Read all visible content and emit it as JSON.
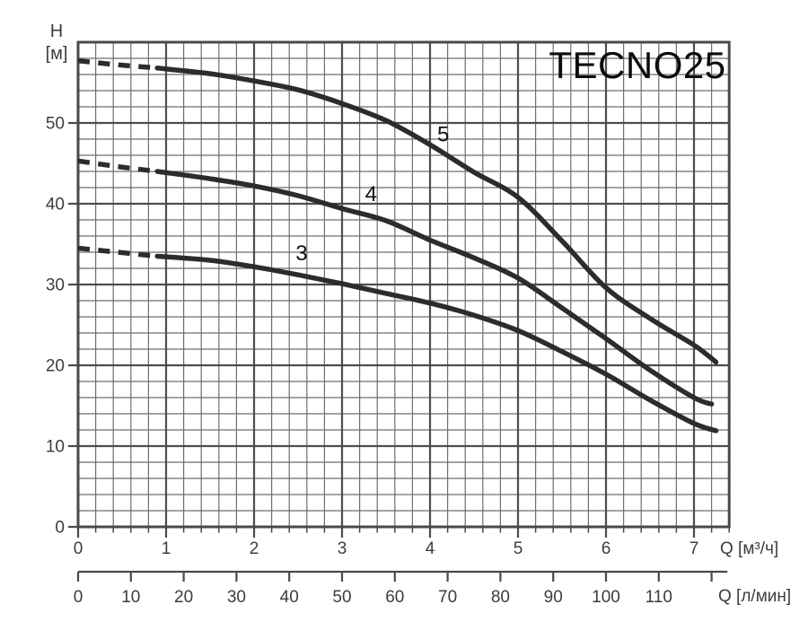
{
  "chart_data": {
    "type": "line",
    "title": "TECNO25",
    "grid": true,
    "xlim": [
      0,
      7.4
    ],
    "ylim": [
      0,
      60
    ],
    "x_axis_primary": {
      "label": "Q [м³/ч]",
      "major_ticks": [
        0,
        1,
        2,
        3,
        4,
        5,
        6,
        7
      ],
      "minor_step": 0.2,
      "max": 7.4
    },
    "x_axis_secondary": {
      "label": "Q [л/мин]",
      "ticks": [
        0,
        10,
        20,
        30,
        40,
        50,
        60,
        70,
        80,
        90,
        100,
        110
      ],
      "unlabeled_tick": 120,
      "ruler_end": 123,
      "liters_per_m3h": 16.6667
    },
    "y_axis": {
      "label_lines": [
        "H",
        "[м]"
      ],
      "major_ticks": [
        0,
        10,
        20,
        30,
        40,
        50
      ],
      "minor_step": 2,
      "max": 60
    },
    "series": [
      {
        "name": "5",
        "label": {
          "text": "5",
          "q": 4.15,
          "h": 48.6
        },
        "dashed_points": [
          [
            0,
            57.7
          ],
          [
            0.45,
            57.2
          ],
          [
            0.9,
            56.8
          ]
        ],
        "solid_points": [
          [
            0.9,
            56.8
          ],
          [
            1.5,
            56.1
          ],
          [
            2.0,
            55.2
          ],
          [
            2.5,
            54.1
          ],
          [
            3.0,
            52.4
          ],
          [
            3.5,
            50.3
          ],
          [
            4.0,
            47.3
          ],
          [
            4.5,
            43.9
          ],
          [
            5.0,
            40.8
          ],
          [
            5.5,
            35.4
          ],
          [
            6.0,
            29.6
          ],
          [
            6.5,
            25.8
          ],
          [
            7.0,
            22.5
          ],
          [
            7.25,
            20.4
          ]
        ]
      },
      {
        "name": "4",
        "label": {
          "text": "4",
          "q": 3.33,
          "h": 41.2
        },
        "dashed_points": [
          [
            0,
            45.3
          ],
          [
            0.45,
            44.6
          ],
          [
            0.9,
            44.0
          ]
        ],
        "solid_points": [
          [
            0.9,
            44.0
          ],
          [
            1.5,
            43.1
          ],
          [
            2.0,
            42.2
          ],
          [
            2.5,
            41.0
          ],
          [
            3.0,
            39.4
          ],
          [
            3.5,
            37.9
          ],
          [
            4.0,
            35.5
          ],
          [
            4.5,
            33.3
          ],
          [
            5.0,
            30.8
          ],
          [
            5.5,
            27.1
          ],
          [
            6.0,
            23.3
          ],
          [
            6.5,
            19.4
          ],
          [
            7.0,
            16.0
          ],
          [
            7.2,
            15.2
          ]
        ]
      },
      {
        "name": "3",
        "label": {
          "text": "3",
          "q": 2.54,
          "h": 33.9
        },
        "dashed_points": [
          [
            0,
            34.5
          ],
          [
            0.45,
            34.0
          ],
          [
            0.9,
            33.5
          ]
        ],
        "solid_points": [
          [
            0.9,
            33.5
          ],
          [
            1.5,
            33.0
          ],
          [
            2.0,
            32.2
          ],
          [
            2.5,
            31.2
          ],
          [
            3.0,
            30.1
          ],
          [
            3.5,
            28.9
          ],
          [
            4.0,
            27.7
          ],
          [
            4.5,
            26.2
          ],
          [
            5.0,
            24.3
          ],
          [
            5.5,
            21.7
          ],
          [
            6.0,
            18.9
          ],
          [
            6.5,
            15.7
          ],
          [
            7.0,
            12.8
          ],
          [
            7.25,
            11.9
          ]
        ]
      }
    ],
    "colors": {
      "curve": "#2c2c2c",
      "grid_minor": "#6e6e6e",
      "grid_major": "#4d4d4d",
      "axis": "#4a4a4a",
      "tick_text": "#3d3d3d",
      "title_text": "#0c0c0c",
      "background": "#ffffff"
    }
  }
}
